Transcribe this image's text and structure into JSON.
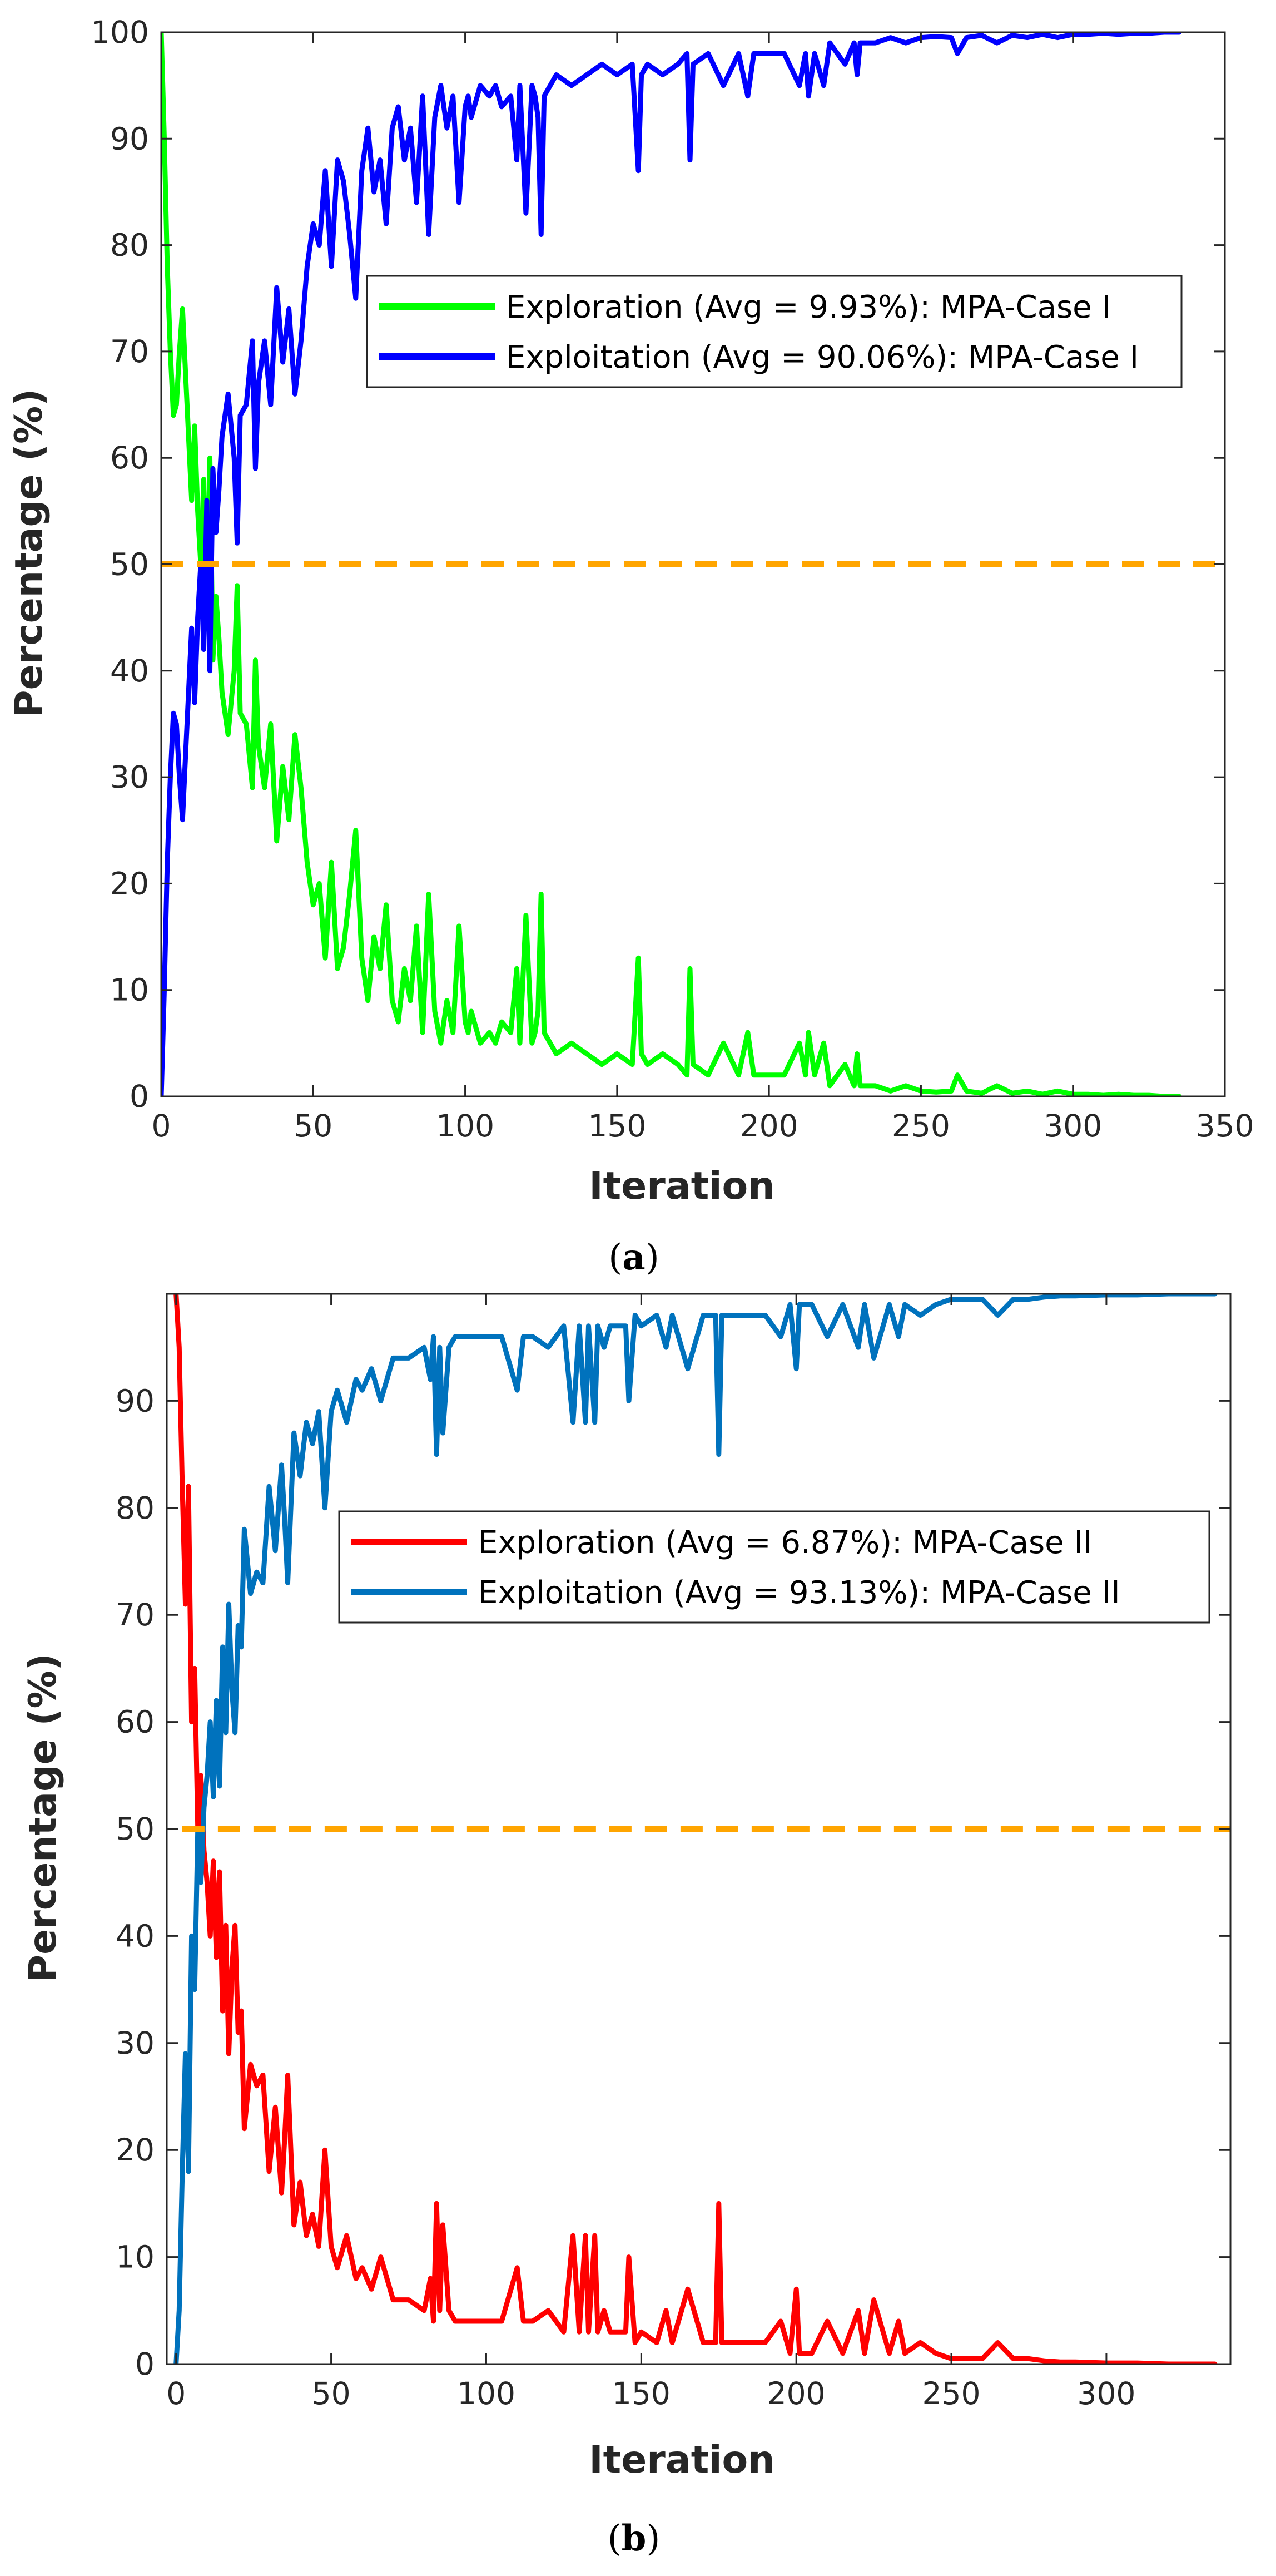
{
  "chart_data": [
    {
      "type": "line",
      "panel": "a",
      "caption": {
        "open": "(",
        "letter": "a",
        "close": ")"
      },
      "title": "",
      "xlabel": "Iteration",
      "ylabel": "Percentage (%)",
      "xlim": [
        0,
        350
      ],
      "ylim": [
        0,
        100
      ],
      "xticks": [
        0,
        50,
        100,
        150,
        200,
        250,
        300,
        350
      ],
      "yticks": [
        0,
        10,
        20,
        30,
        40,
        50,
        60,
        70,
        80,
        90,
        100
      ],
      "grid": false,
      "legend_position": "center-right",
      "threshold": {
        "y": 50,
        "color": "#FFA500",
        "style": "dashed"
      },
      "series": [
        {
          "name": "Exploration (Avg = 9.93%): MPA-Case I",
          "color": "#00FF00",
          "x": [
            0,
            1,
            2,
            3,
            4,
            5,
            6,
            7,
            8,
            9,
            10,
            11,
            12,
            13,
            14,
            15,
            16,
            17,
            18,
            19,
            20,
            22,
            24,
            25,
            26,
            28,
            30,
            31,
            32,
            34,
            36,
            38,
            40,
            42,
            44,
            46,
            48,
            50,
            52,
            54,
            56,
            58,
            60,
            62,
            64,
            66,
            68,
            70,
            72,
            74,
            76,
            78,
            80,
            82,
            84,
            86,
            88,
            90,
            92,
            94,
            96,
            98,
            100,
            101,
            102,
            105,
            108,
            110,
            112,
            115,
            117,
            118,
            120,
            122,
            123,
            124,
            125,
            126,
            128,
            130,
            135,
            140,
            145,
            150,
            155,
            157,
            158,
            160,
            165,
            170,
            173,
            174,
            175,
            180,
            185,
            190,
            193,
            195,
            200,
            205,
            210,
            212,
            213,
            215,
            218,
            220,
            225,
            228,
            229,
            230,
            235,
            240,
            245,
            250,
            255,
            260,
            262,
            265,
            270,
            275,
            280,
            285,
            290,
            295,
            300,
            305,
            310,
            315,
            320,
            325,
            330,
            335
          ],
          "values": [
            100,
            90,
            78,
            70,
            64,
            65,
            70,
            74,
            68,
            62,
            56,
            63,
            55,
            50,
            58,
            44,
            60,
            41,
            47,
            43,
            38,
            34,
            40,
            48,
            36,
            35,
            29,
            41,
            33,
            29,
            35,
            24,
            31,
            26,
            34,
            29,
            22,
            18,
            20,
            13,
            22,
            12,
            14,
            19,
            25,
            13,
            9,
            15,
            12,
            18,
            9,
            7,
            12,
            9,
            16,
            6,
            19,
            8,
            5,
            9,
            6,
            16,
            7,
            6,
            8,
            5,
            6,
            5,
            7,
            6,
            12,
            5,
            17,
            5,
            6,
            8,
            19,
            6,
            5,
            4,
            5,
            4,
            3,
            4,
            3,
            13,
            4,
            3,
            4,
            3,
            2,
            12,
            3,
            2,
            5,
            2,
            6,
            2,
            2,
            2,
            5,
            2,
            6,
            2,
            5,
            1,
            3,
            1,
            4,
            1,
            1,
            0.5,
            1,
            0.5,
            0.4,
            0.5,
            2,
            0.5,
            0.3,
            1,
            0.3,
            0.5,
            0.2,
            0.5,
            0.2,
            0.2,
            0.1,
            0.2,
            0.1,
            0.1,
            0,
            0
          ]
        },
        {
          "name": "Exploitation (Avg = 90.06%): MPA-Case I",
          "color": "#0000FF",
          "x": [
            0,
            1,
            2,
            3,
            4,
            5,
            6,
            7,
            8,
            9,
            10,
            11,
            12,
            13,
            14,
            15,
            16,
            17,
            18,
            19,
            20,
            22,
            24,
            25,
            26,
            28,
            30,
            31,
            32,
            34,
            36,
            38,
            40,
            42,
            44,
            46,
            48,
            50,
            52,
            54,
            56,
            58,
            60,
            62,
            64,
            66,
            68,
            70,
            72,
            74,
            76,
            78,
            80,
            82,
            84,
            86,
            88,
            90,
            92,
            94,
            96,
            98,
            100,
            101,
            102,
            105,
            108,
            110,
            112,
            115,
            117,
            118,
            120,
            122,
            123,
            124,
            125,
            126,
            128,
            130,
            135,
            140,
            145,
            150,
            155,
            157,
            158,
            160,
            165,
            170,
            173,
            174,
            175,
            180,
            185,
            190,
            193,
            195,
            200,
            205,
            210,
            212,
            213,
            215,
            218,
            220,
            225,
            228,
            229,
            230,
            235,
            240,
            245,
            250,
            255,
            260,
            262,
            265,
            270,
            275,
            280,
            285,
            290,
            295,
            300,
            305,
            310,
            315,
            320,
            325,
            330,
            335
          ],
          "values": [
            0,
            10,
            22,
            30,
            36,
            35,
            30,
            26,
            32,
            38,
            44,
            37,
            45,
            50,
            42,
            56,
            40,
            59,
            53,
            57,
            62,
            66,
            60,
            52,
            64,
            65,
            71,
            59,
            67,
            71,
            65,
            76,
            69,
            74,
            66,
            71,
            78,
            82,
            80,
            87,
            78,
            88,
            86,
            81,
            75,
            87,
            91,
            85,
            88,
            82,
            91,
            93,
            88,
            91,
            84,
            94,
            81,
            92,
            95,
            91,
            94,
            84,
            93,
            94,
            92,
            95,
            94,
            95,
            93,
            94,
            88,
            95,
            83,
            95,
            94,
            92,
            81,
            94,
            95,
            96,
            95,
            96,
            97,
            96,
            97,
            87,
            96,
            97,
            96,
            97,
            98,
            88,
            97,
            98,
            95,
            98,
            94,
            98,
            98,
            98,
            95,
            98,
            94,
            98,
            95,
            99,
            97,
            99,
            96,
            99,
            99,
            99.5,
            99,
            99.5,
            99.6,
            99.5,
            98,
            99.5,
            99.7,
            99,
            99.7,
            99.5,
            99.8,
            99.5,
            99.8,
            99.8,
            99.9,
            99.8,
            99.9,
            99.9,
            100,
            100
          ]
        }
      ]
    },
    {
      "type": "line",
      "panel": "b",
      "caption": {
        "open": "(",
        "letter": "b",
        "close": ")"
      },
      "title": "",
      "xlabel": "Iteration",
      "ylabel": "Percentage (%)",
      "xlim": [
        -3,
        340
      ],
      "ylim": [
        0,
        100
      ],
      "xticks": [
        0,
        50,
        100,
        150,
        200,
        250,
        300
      ],
      "yticks": [
        0,
        10,
        20,
        30,
        40,
        50,
        60,
        70,
        80,
        90
      ],
      "grid": false,
      "legend_position": "center-right",
      "threshold": {
        "y": 50,
        "color": "#FFA500",
        "style": "dashed"
      },
      "series": [
        {
          "name": "Exploration (Avg = 6.87%): MPA-Case II",
          "color": "#FF0000",
          "x": [
            0,
            1,
            2,
            3,
            4,
            5,
            6,
            7,
            8,
            9,
            10,
            11,
            12,
            13,
            14,
            15,
            16,
            17,
            18,
            19,
            20,
            21,
            22,
            24,
            26,
            28,
            30,
            32,
            34,
            35,
            36,
            38,
            40,
            42,
            44,
            46,
            48,
            50,
            52,
            55,
            58,
            60,
            63,
            66,
            70,
            75,
            80,
            82,
            83,
            84,
            85,
            86,
            88,
            90,
            95,
            100,
            105,
            110,
            112,
            115,
            120,
            125,
            128,
            130,
            132,
            133,
            135,
            136,
            138,
            140,
            145,
            146,
            148,
            150,
            155,
            158,
            160,
            165,
            170,
            174,
            175,
            176,
            180,
            185,
            190,
            195,
            198,
            200,
            201,
            205,
            210,
            215,
            220,
            222,
            225,
            230,
            233,
            235,
            240,
            245,
            250,
            255,
            260,
            265,
            270,
            275,
            280,
            285,
            290,
            300,
            310,
            320,
            330,
            335
          ],
          "values": [
            100,
            95,
            82,
            71,
            82,
            60,
            65,
            50,
            55,
            48,
            45,
            40,
            47,
            38,
            46,
            33,
            41,
            29,
            37,
            41,
            31,
            33,
            22,
            28,
            26,
            27,
            18,
            24,
            16,
            21,
            27,
            13,
            17,
            12,
            14,
            11,
            20,
            11,
            9,
            12,
            8,
            9,
            7,
            10,
            6,
            6,
            5,
            8,
            4,
            15,
            5,
            13,
            5,
            4,
            4,
            4,
            4,
            9,
            4,
            4,
            5,
            3,
            12,
            3,
            12,
            3,
            12,
            3,
            5,
            3,
            3,
            10,
            2,
            3,
            2,
            5,
            2,
            7,
            2,
            2,
            15,
            2,
            2,
            2,
            2,
            4,
            1,
            7,
            1,
            1,
            4,
            1,
            5,
            1,
            6,
            1,
            4,
            1,
            2,
            1,
            0.5,
            0.5,
            0.5,
            2,
            0.5,
            0.5,
            0.3,
            0.2,
            0.2,
            0.1,
            0.1,
            0,
            0,
            0
          ]
        },
        {
          "name": "Exploitation (Avg = 93.13%): MPA-Case II",
          "color": "#0072BD",
          "x": [
            0,
            1,
            2,
            3,
            4,
            5,
            6,
            7,
            8,
            9,
            10,
            11,
            12,
            13,
            14,
            15,
            16,
            17,
            18,
            19,
            20,
            21,
            22,
            24,
            26,
            28,
            30,
            32,
            34,
            35,
            36,
            38,
            40,
            42,
            44,
            46,
            48,
            50,
            52,
            55,
            58,
            60,
            63,
            66,
            70,
            75,
            80,
            82,
            83,
            84,
            85,
            86,
            88,
            90,
            95,
            100,
            105,
            110,
            112,
            115,
            120,
            125,
            128,
            130,
            132,
            133,
            135,
            136,
            138,
            140,
            145,
            146,
            148,
            150,
            155,
            158,
            160,
            165,
            170,
            174,
            175,
            176,
            180,
            185,
            190,
            195,
            198,
            200,
            201,
            205,
            210,
            215,
            220,
            222,
            225,
            230,
            233,
            235,
            240,
            245,
            250,
            255,
            260,
            265,
            270,
            275,
            280,
            285,
            290,
            300,
            310,
            320,
            330,
            335
          ],
          "values": [
            0,
            5,
            18,
            29,
            18,
            40,
            35,
            50,
            45,
            52,
            55,
            60,
            53,
            62,
            54,
            67,
            59,
            71,
            63,
            59,
            69,
            67,
            78,
            72,
            74,
            73,
            82,
            76,
            84,
            79,
            73,
            87,
            83,
            88,
            86,
            89,
            80,
            89,
            91,
            88,
            92,
            91,
            93,
            90,
            94,
            94,
            95,
            92,
            96,
            85,
            95,
            87,
            95,
            96,
            96,
            96,
            96,
            91,
            96,
            96,
            95,
            97,
            88,
            97,
            88,
            97,
            88,
            97,
            95,
            97,
            97,
            90,
            98,
            97,
            98,
            95,
            98,
            93,
            98,
            98,
            85,
            98,
            98,
            98,
            98,
            96,
            99,
            93,
            99,
            99,
            96,
            99,
            95,
            99,
            94,
            99,
            96,
            99,
            98,
            99,
            99.5,
            99.5,
            99.5,
            98,
            99.5,
            99.5,
            99.7,
            99.8,
            99.8,
            99.9,
            99.9,
            100,
            100,
            100
          ]
        }
      ]
    }
  ]
}
